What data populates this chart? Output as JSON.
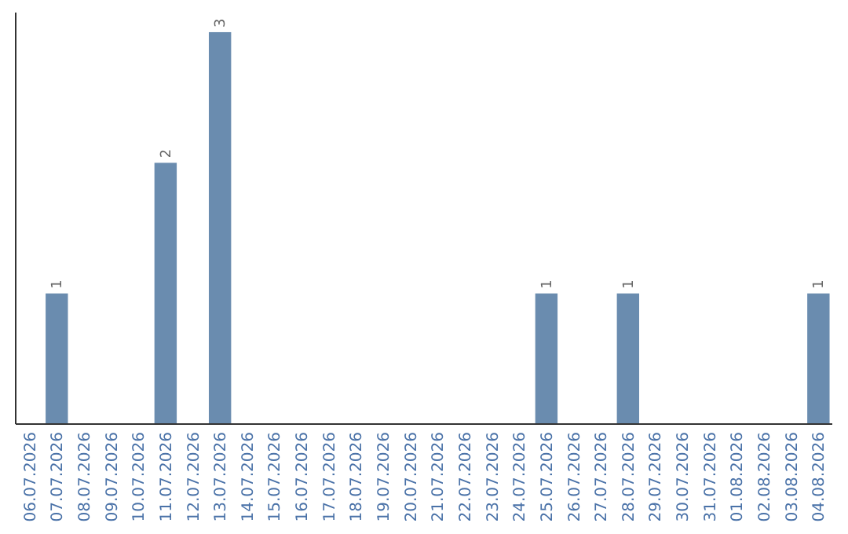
{
  "chart_data": {
    "type": "bar",
    "categories": [
      "06.07.2026",
      "07.07.2026",
      "08.07.2026",
      "09.07.2026",
      "10.07.2026",
      "11.07.2026",
      "12.07.2026",
      "13.07.2026",
      "14.07.2026",
      "15.07.2026",
      "16.07.2026",
      "17.07.2026",
      "18.07.2026",
      "19.07.2026",
      "20.07.2026",
      "21.07.2026",
      "22.07.2026",
      "23.07.2026",
      "24.07.2026",
      "25.07.2026",
      "26.07.2026",
      "27.07.2026",
      "28.07.2026",
      "29.07.2026",
      "30.07.2026",
      "31.07.2026",
      "01.08.2026",
      "02.08.2026",
      "03.08.2026",
      "04.08.2026"
    ],
    "values": [
      0,
      1,
      0,
      0,
      0,
      2,
      0,
      3,
      0,
      0,
      0,
      0,
      0,
      0,
      0,
      0,
      0,
      0,
      0,
      1,
      0,
      0,
      1,
      0,
      0,
      0,
      0,
      0,
      0,
      1
    ],
    "value_labels": [
      null,
      "1",
      null,
      null,
      null,
      "2",
      null,
      "3",
      null,
      null,
      null,
      null,
      null,
      null,
      null,
      null,
      null,
      null,
      null,
      "1",
      null,
      null,
      "1",
      null,
      null,
      null,
      null,
      null,
      null,
      "1"
    ],
    "color": "#6a8caf"
  }
}
